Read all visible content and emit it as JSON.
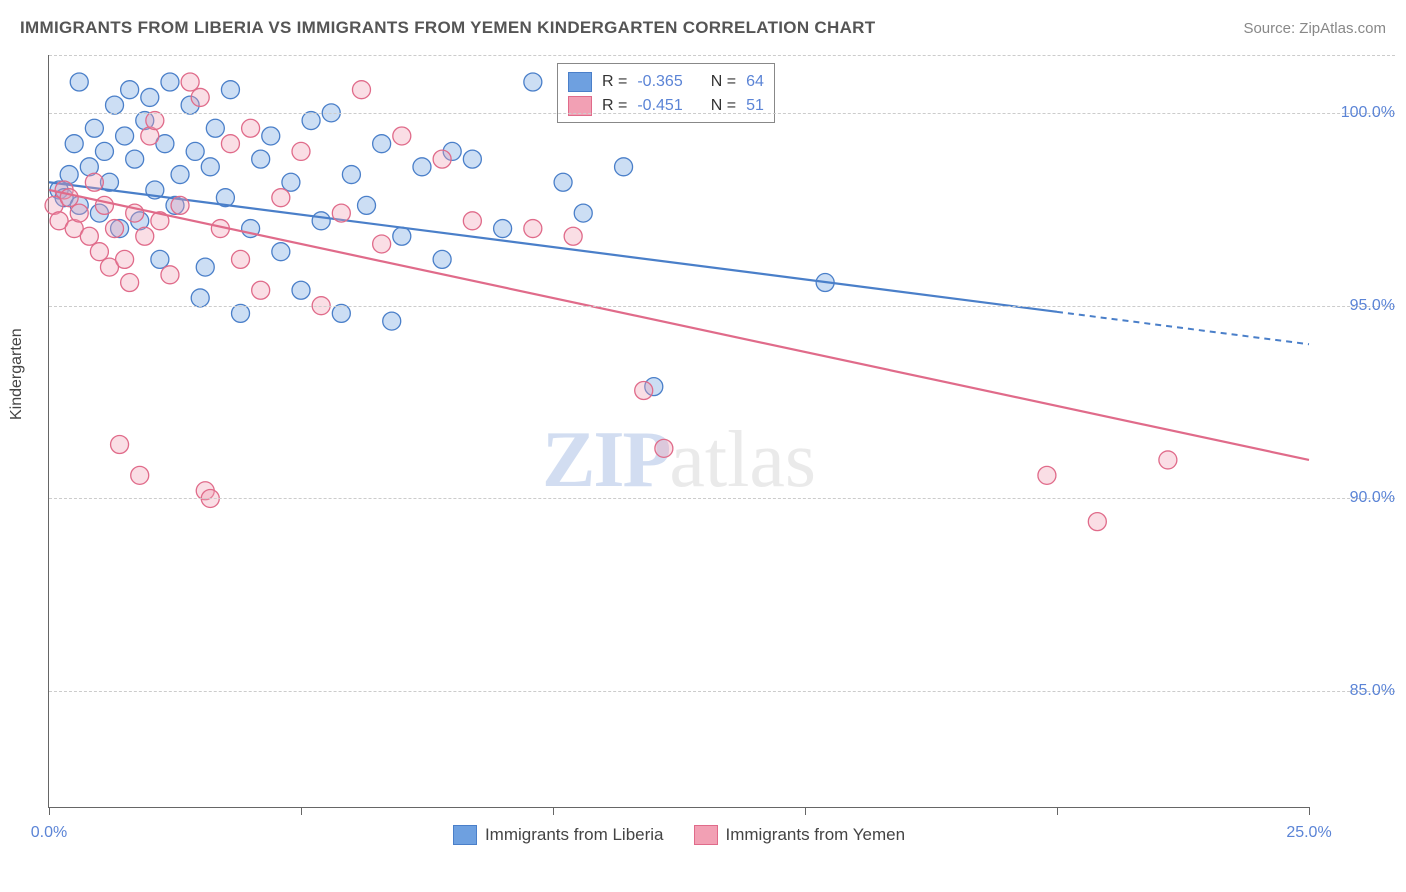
{
  "title": "IMMIGRANTS FROM LIBERIA VS IMMIGRANTS FROM YEMEN KINDERGARTEN CORRELATION CHART",
  "source": "Source: ZipAtlas.com",
  "ylabel": "Kindergarten",
  "watermark_a": "ZIP",
  "watermark_b": "atlas",
  "chart": {
    "type": "scatter",
    "xlim": [
      0,
      25
    ],
    "ylim": [
      82,
      101.5
    ],
    "xtick_positions": [
      0,
      5,
      10,
      15,
      20,
      25
    ],
    "xtick_labels": [
      "0.0%",
      "",
      "",
      "",
      "",
      "25.0%"
    ],
    "ytick_positions": [
      85,
      90,
      95,
      100
    ],
    "ytick_labels": [
      "85.0%",
      "90.0%",
      "95.0%",
      "100.0%"
    ],
    "grid_color": "#cccccc",
    "background_color": "#ffffff",
    "marker_radius": 9,
    "marker_fill_opacity": 0.35,
    "marker_stroke_width": 1.3,
    "series": [
      {
        "name": "Immigrants from Liberia",
        "label": "Immigrants from Liberia",
        "color": "#6ea0e0",
        "stroke": "#4a7fc9",
        "R": "-0.365",
        "N": "64",
        "trend": {
          "x1": 0,
          "y1": 98.2,
          "x2": 25,
          "y2": 94.0,
          "solid_until_x": 20
        },
        "points": [
          [
            0.2,
            98.0
          ],
          [
            0.3,
            97.8
          ],
          [
            0.4,
            98.4
          ],
          [
            0.5,
            99.2
          ],
          [
            0.6,
            97.6
          ],
          [
            0.6,
            100.8
          ],
          [
            0.8,
            98.6
          ],
          [
            0.9,
            99.6
          ],
          [
            1.0,
            97.4
          ],
          [
            1.1,
            99.0
          ],
          [
            1.2,
            98.2
          ],
          [
            1.3,
            100.2
          ],
          [
            1.4,
            97.0
          ],
          [
            1.5,
            99.4
          ],
          [
            1.6,
            100.6
          ],
          [
            1.7,
            98.8
          ],
          [
            1.8,
            97.2
          ],
          [
            1.9,
            99.8
          ],
          [
            2.0,
            100.4
          ],
          [
            2.1,
            98.0
          ],
          [
            2.2,
            96.2
          ],
          [
            2.3,
            99.2
          ],
          [
            2.4,
            100.8
          ],
          [
            2.5,
            97.6
          ],
          [
            2.6,
            98.4
          ],
          [
            2.8,
            100.2
          ],
          [
            2.9,
            99.0
          ],
          [
            3.0,
            95.2
          ],
          [
            3.1,
            96.0
          ],
          [
            3.2,
            98.6
          ],
          [
            3.3,
            99.6
          ],
          [
            3.5,
            97.8
          ],
          [
            3.6,
            100.6
          ],
          [
            3.8,
            94.8
          ],
          [
            4.0,
            97.0
          ],
          [
            4.2,
            98.8
          ],
          [
            4.4,
            99.4
          ],
          [
            4.6,
            96.4
          ],
          [
            4.8,
            98.2
          ],
          [
            5.0,
            95.4
          ],
          [
            5.2,
            99.8
          ],
          [
            5.4,
            97.2
          ],
          [
            5.6,
            100.0
          ],
          [
            5.8,
            94.8
          ],
          [
            6.0,
            98.4
          ],
          [
            6.3,
            97.6
          ],
          [
            6.6,
            99.2
          ],
          [
            6.8,
            94.6
          ],
          [
            7.0,
            96.8
          ],
          [
            7.4,
            98.6
          ],
          [
            7.8,
            96.2
          ],
          [
            8.0,
            99.0
          ],
          [
            8.4,
            98.8
          ],
          [
            9.0,
            97.0
          ],
          [
            9.6,
            100.8
          ],
          [
            10.2,
            98.2
          ],
          [
            10.6,
            97.4
          ],
          [
            11.4,
            98.6
          ],
          [
            12.0,
            92.9
          ],
          [
            15.4,
            95.6
          ]
        ]
      },
      {
        "name": "Immigrants from Yemen",
        "label": "Immigrants from Yemen",
        "color": "#f2a0b4",
        "stroke": "#e06b8a",
        "R": "-0.451",
        "N": "51",
        "trend": {
          "x1": 0,
          "y1": 98.0,
          "x2": 25,
          "y2": 91.0,
          "solid_until_x": 25
        },
        "points": [
          [
            0.1,
            97.6
          ],
          [
            0.2,
            97.2
          ],
          [
            0.3,
            98.0
          ],
          [
            0.4,
            97.8
          ],
          [
            0.5,
            97.0
          ],
          [
            0.6,
            97.4
          ],
          [
            0.8,
            96.8
          ],
          [
            0.9,
            98.2
          ],
          [
            1.0,
            96.4
          ],
          [
            1.1,
            97.6
          ],
          [
            1.2,
            96.0
          ],
          [
            1.3,
            97.0
          ],
          [
            1.4,
            91.4
          ],
          [
            1.5,
            96.2
          ],
          [
            1.6,
            95.6
          ],
          [
            1.7,
            97.4
          ],
          [
            1.8,
            90.6
          ],
          [
            1.9,
            96.8
          ],
          [
            2.0,
            99.4
          ],
          [
            2.1,
            99.8
          ],
          [
            2.2,
            97.2
          ],
          [
            2.4,
            95.8
          ],
          [
            2.6,
            97.6
          ],
          [
            2.8,
            100.8
          ],
          [
            3.0,
            100.4
          ],
          [
            3.1,
            90.2
          ],
          [
            3.2,
            90.0
          ],
          [
            3.4,
            97.0
          ],
          [
            3.6,
            99.2
          ],
          [
            3.8,
            96.2
          ],
          [
            4.0,
            99.6
          ],
          [
            4.2,
            95.4
          ],
          [
            4.6,
            97.8
          ],
          [
            5.0,
            99.0
          ],
          [
            5.4,
            95.0
          ],
          [
            5.8,
            97.4
          ],
          [
            6.2,
            100.6
          ],
          [
            6.6,
            96.6
          ],
          [
            7.0,
            99.4
          ],
          [
            7.8,
            98.8
          ],
          [
            8.4,
            97.2
          ],
          [
            9.6,
            97.0
          ],
          [
            10.4,
            96.8
          ],
          [
            11.8,
            92.8
          ],
          [
            12.2,
            91.3
          ],
          [
            19.8,
            90.6
          ],
          [
            20.8,
            89.4
          ],
          [
            22.2,
            91.0
          ]
        ]
      }
    ]
  },
  "legend": {
    "r_label": "R =",
    "n_label": "N ="
  }
}
